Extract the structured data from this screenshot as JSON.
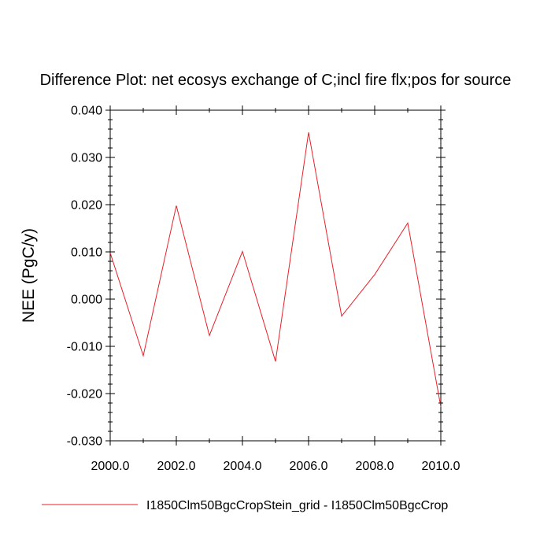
{
  "chart_data": {
    "type": "line",
    "title": "Difference Plot: net ecosys exchange of C;incl fire flx;pos for source",
    "xlabel": "",
    "ylabel": "NEE  (PgC/y)",
    "xlim": [
      2000.0,
      2010.0
    ],
    "ylim": [
      -0.03,
      0.04
    ],
    "x_ticks": [
      2000.0,
      2002.0,
      2004.0,
      2006.0,
      2008.0,
      2010.0
    ],
    "x_tick_labels": [
      "2000.0",
      "2002.0",
      "2004.0",
      "2006.0",
      "2008.0",
      "2010.0"
    ],
    "y_ticks": [
      -0.03,
      -0.02,
      -0.01,
      0.0,
      0.01,
      0.02,
      0.03,
      0.04
    ],
    "y_tick_labels": [
      "-0.030",
      "-0.020",
      "-0.010",
      "0.000",
      "0.010",
      "0.020",
      "0.030",
      "0.040"
    ],
    "grid": false,
    "legend_position": "bottom",
    "x": [
      2000,
      2001,
      2002,
      2003,
      2004,
      2005,
      2006,
      2007,
      2008,
      2009,
      2010
    ],
    "series": [
      {
        "name": "I1850Clm50BgcCropStein_grid - I1850Clm50BgcCrop",
        "color": "#e8202a",
        "values": [
          0.0098,
          -0.012,
          0.0198,
          -0.0077,
          0.0101,
          -0.0132,
          0.0353,
          -0.0036,
          0.0052,
          0.0161,
          -0.0228
        ]
      }
    ]
  }
}
